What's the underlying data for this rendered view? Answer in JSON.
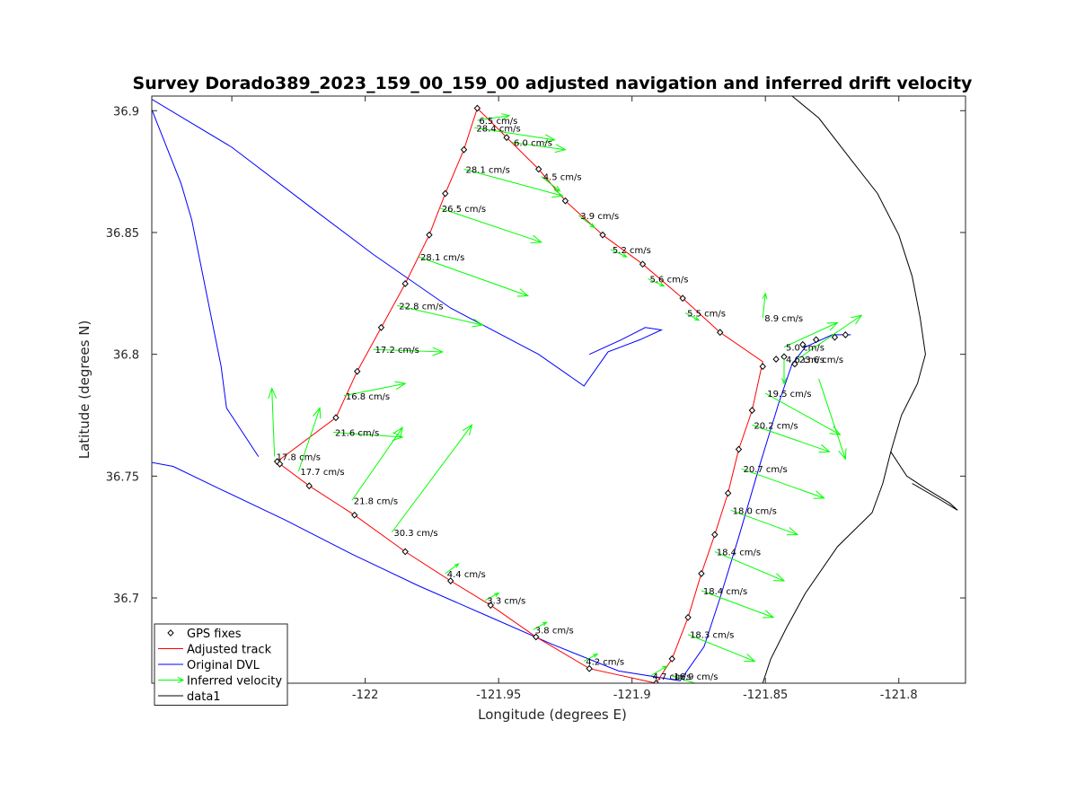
{
  "chart_data": {
    "type": "line",
    "title": "Survey Dorado389_2023_159_00_159_00 adjusted navigation and inferred drift velocity",
    "xlabel": "Longitude (degrees E)",
    "ylabel": "Latitude (degrees N)",
    "xlim": [
      -122.08,
      -121.775
    ],
    "ylim": [
      36.665,
      36.906
    ],
    "xticks": [
      -122.05,
      -122,
      -121.95,
      -121.9,
      -121.85,
      -121.8
    ],
    "xtick_labels": [
      "-122.05",
      "-122",
      "-121.95",
      "-121.9",
      "-121.85",
      "-121.8"
    ],
    "yticks": [
      36.7,
      36.75,
      36.8,
      36.85,
      36.9
    ],
    "ytick_labels": [
      "36.7",
      "36.75",
      "36.8",
      "36.85",
      "36.9"
    ],
    "grid": false,
    "legend_position": "bottom-left",
    "series": [
      {
        "name": "GPS fixes",
        "style": "markers",
        "color": "#000000",
        "points": [
          [
            -121.958,
            36.901
          ],
          [
            -121.947,
            36.889
          ],
          [
            -121.935,
            36.876
          ],
          [
            -121.963,
            36.884
          ],
          [
            -121.97,
            36.866
          ],
          [
            -121.925,
            36.863
          ],
          [
            -121.976,
            36.849
          ],
          [
            -121.911,
            36.849
          ],
          [
            -121.896,
            36.837
          ],
          [
            -121.985,
            36.829
          ],
          [
            -121.881,
            36.823
          ],
          [
            -121.994,
            36.811
          ],
          [
            -121.867,
            36.809
          ],
          [
            -122.003,
            36.793
          ],
          [
            -122.011,
            36.774
          ],
          [
            -122.033,
            36.756
          ],
          [
            -122.032,
            36.755
          ],
          [
            -122.021,
            36.746
          ],
          [
            -122.004,
            36.734
          ],
          [
            -121.985,
            36.719
          ],
          [
            -121.968,
            36.707
          ],
          [
            -121.953,
            36.697
          ],
          [
            -121.936,
            36.684
          ],
          [
            -121.916,
            36.671
          ],
          [
            -121.891,
            36.665
          ],
          [
            -121.851,
            36.795
          ],
          [
            -121.846,
            36.798
          ],
          [
            -121.843,
            36.799
          ],
          [
            -121.836,
            36.804
          ],
          [
            -121.831,
            36.806
          ],
          [
            -121.824,
            36.807
          ],
          [
            -121.82,
            36.808
          ],
          [
            -121.839,
            36.796
          ],
          [
            -121.855,
            36.777
          ],
          [
            -121.86,
            36.761
          ],
          [
            -121.864,
            36.743
          ],
          [
            -121.869,
            36.726
          ],
          [
            -121.874,
            36.71
          ],
          [
            -121.879,
            36.692
          ],
          [
            -121.885,
            36.675
          ]
        ]
      },
      {
        "name": "Adjusted track",
        "style": "line",
        "color": "#ff0000",
        "points": [
          [
            -121.958,
            36.901
          ],
          [
            -121.947,
            36.889
          ],
          [
            -121.935,
            36.876
          ],
          [
            -121.925,
            36.863
          ],
          [
            -121.911,
            36.849
          ],
          [
            -121.896,
            36.837
          ],
          [
            -121.881,
            36.823
          ],
          [
            -121.867,
            36.809
          ],
          [
            -121.851,
            36.797
          ],
          [
            -121.855,
            36.777
          ],
          [
            -121.86,
            36.761
          ],
          [
            -121.864,
            36.743
          ],
          [
            -121.869,
            36.726
          ],
          [
            -121.874,
            36.71
          ],
          [
            -121.879,
            36.692
          ],
          [
            -121.885,
            36.675
          ],
          [
            -121.891,
            36.665
          ],
          [
            -121.916,
            36.671
          ],
          [
            -121.936,
            36.684
          ],
          [
            -121.953,
            36.697
          ],
          [
            -121.968,
            36.707
          ],
          [
            -121.985,
            36.719
          ],
          [
            -122.004,
            36.734
          ],
          [
            -122.021,
            36.746
          ],
          [
            -122.032,
            36.755
          ],
          [
            -122.033,
            36.756
          ],
          [
            -122.011,
            36.774
          ],
          [
            -122.003,
            36.793
          ],
          [
            -121.994,
            36.811
          ],
          [
            -121.985,
            36.829
          ],
          [
            -121.976,
            36.849
          ],
          [
            -121.97,
            36.866
          ],
          [
            -121.963,
            36.884
          ],
          [
            -121.958,
            36.901
          ]
        ]
      },
      {
        "name": "Original DVL",
        "style": "line",
        "color": "#0000ff",
        "points": [
          [
            -122.04,
            36.758
          ],
          [
            -122.052,
            36.778
          ],
          [
            -122.054,
            36.795
          ],
          [
            -122.065,
            36.855
          ],
          [
            -122.069,
            36.87
          ],
          [
            -122.078,
            36.895
          ],
          [
            -122.082,
            36.906
          ],
          [
            -122.05,
            36.885
          ],
          [
            -122.02,
            36.86
          ],
          [
            -121.997,
            36.841
          ],
          [
            -121.968,
            36.819
          ],
          [
            -121.935,
            36.8
          ],
          [
            -121.918,
            36.787
          ],
          [
            -121.909,
            36.801
          ],
          [
            -121.897,
            36.806
          ],
          [
            -121.889,
            36.81
          ],
          [
            -121.895,
            36.811
          ],
          [
            -121.904,
            36.806
          ],
          [
            -121.916,
            36.8
          ]
        ]
      },
      {
        "name": "Original DVL (south leg)",
        "style": "line",
        "color": "#0000ff",
        "points": [
          [
            -122.082,
            36.756
          ],
          [
            -122.072,
            36.754
          ],
          [
            -122.055,
            36.745
          ],
          [
            -122.03,
            36.732
          ],
          [
            -122.005,
            36.718
          ],
          [
            -121.98,
            36.705
          ],
          [
            -121.955,
            36.693
          ],
          [
            -121.93,
            36.681
          ],
          [
            -121.905,
            36.67
          ],
          [
            -121.882,
            36.666
          ],
          [
            -121.873,
            36.68
          ],
          [
            -121.867,
            36.7
          ],
          [
            -121.86,
            36.725
          ],
          [
            -121.852,
            36.755
          ],
          [
            -121.845,
            36.78
          ],
          [
            -121.84,
            36.796
          ],
          [
            -121.835,
            36.803
          ],
          [
            -121.825,
            36.808
          ],
          [
            -121.818,
            36.808
          ]
        ]
      },
      {
        "name": "data1",
        "style": "line",
        "color": "#000000",
        "points": [
          [
            -121.84,
            36.906
          ],
          [
            -121.83,
            36.897
          ],
          [
            -121.818,
            36.88
          ],
          [
            -121.808,
            36.866
          ],
          [
            -121.8,
            36.849
          ],
          [
            -121.795,
            36.832
          ],
          [
            -121.792,
            36.815
          ],
          [
            -121.79,
            36.8
          ],
          [
            -121.793,
            36.788
          ],
          [
            -121.799,
            36.775
          ],
          [
            -121.803,
            36.76
          ],
          [
            -121.806,
            36.747
          ],
          [
            -121.81,
            36.735
          ],
          [
            -121.823,
            36.721
          ],
          [
            -121.835,
            36.702
          ],
          [
            -121.842,
            36.688
          ],
          [
            -121.848,
            36.675
          ],
          [
            -121.851,
            36.665
          ]
        ]
      },
      {
        "name": "data1 (coast spur)",
        "style": "line",
        "color": "#000000",
        "points": [
          [
            -121.803,
            36.76
          ],
          [
            -121.797,
            36.75
          ],
          [
            -121.79,
            36.745
          ],
          [
            -121.781,
            36.739
          ],
          [
            -121.778,
            36.736
          ],
          [
            -121.784,
            36.74
          ],
          [
            -121.795,
            36.747
          ]
        ]
      }
    ],
    "velocity_vectors": {
      "name": "Inferred velocity",
      "color": "#00ff00",
      "vectors": [
        {
          "x": -121.958,
          "y": 36.896,
          "dx": 0.012,
          "dy": 0.002,
          "label": "6.5 cm/s"
        },
        {
          "x": -121.959,
          "y": 36.893,
          "dx": 0.03,
          "dy": -0.005,
          "label": "28.4 cm/s"
        },
        {
          "x": -121.945,
          "y": 36.887,
          "dx": 0.02,
          "dy": -0.003,
          "label": "6.0 cm/s"
        },
        {
          "x": -121.963,
          "y": 36.876,
          "dx": 0.037,
          "dy": -0.011,
          "label": "28.1 cm/s"
        },
        {
          "x": -121.934,
          "y": 36.873,
          "dx": 0.007,
          "dy": -0.006,
          "label": "4.5 cm/s"
        },
        {
          "x": -121.972,
          "y": 36.86,
          "dx": 0.038,
          "dy": -0.014,
          "label": "26.5 cm/s"
        },
        {
          "x": -121.92,
          "y": 36.857,
          "dx": 0.006,
          "dy": -0.005,
          "label": "3.9 cm/s"
        },
        {
          "x": -121.98,
          "y": 36.84,
          "dx": 0.041,
          "dy": -0.016,
          "label": "28.1 cm/s"
        },
        {
          "x": -121.908,
          "y": 36.843,
          "dx": 0.006,
          "dy": -0.003,
          "label": "5.2 cm/s"
        },
        {
          "x": -121.894,
          "y": 36.831,
          "dx": 0.006,
          "dy": -0.003,
          "label": "5.6 cm/s"
        },
        {
          "x": -121.988,
          "y": 36.82,
          "dx": 0.032,
          "dy": -0.008,
          "label": "22.8 cm/s"
        },
        {
          "x": -121.88,
          "y": 36.817,
          "dx": 0.005,
          "dy": -0.003,
          "label": "5.5 cm/s"
        },
        {
          "x": -121.997,
          "y": 36.802,
          "dx": 0.026,
          "dy": -0.001,
          "label": "17.2 cm/s"
        },
        {
          "x": -121.851,
          "y": 36.815,
          "dx": 0.001,
          "dy": 0.01,
          "label": "8.9 cm/s"
        },
        {
          "x": -122.008,
          "y": 36.783,
          "dx": 0.023,
          "dy": 0.005,
          "label": "16.8 cm/s"
        },
        {
          "x": -122.034,
          "y": 36.758,
          "dx": -0.001,
          "dy": 0.028,
          "label": "17.8 cm/s"
        },
        {
          "x": -122.012,
          "y": 36.768,
          "dx": 0.026,
          "dy": -0.002,
          "label": "21.6 cm/s"
        },
        {
          "x": -122.025,
          "y": 36.752,
          "dx": 0.008,
          "dy": 0.026,
          "label": "17.7 cm/s"
        },
        {
          "x": -122.005,
          "y": 36.74,
          "dx": 0.019,
          "dy": 0.03,
          "label": "21.8 cm/s"
        },
        {
          "x": -121.99,
          "y": 36.727,
          "dx": 0.03,
          "dy": 0.044,
          "label": "30.3 cm/s"
        },
        {
          "x": -121.97,
          "y": 36.71,
          "dx": 0.005,
          "dy": 0.004,
          "label": "4.4 cm/s"
        },
        {
          "x": -121.955,
          "y": 36.699,
          "dx": 0.005,
          "dy": 0.003,
          "label": "3.3 cm/s"
        },
        {
          "x": -121.937,
          "y": 36.687,
          "dx": 0.005,
          "dy": 0.003,
          "label": "3.8 cm/s"
        },
        {
          "x": -121.918,
          "y": 36.674,
          "dx": 0.005,
          "dy": 0.003,
          "label": "4.2 cm/s"
        },
        {
          "x": -121.893,
          "y": 36.668,
          "dx": 0.006,
          "dy": 0.004,
          "label": "4.7 cm/s"
        },
        {
          "x": -121.843,
          "y": 36.803,
          "dx": 0.02,
          "dy": 0.01,
          "label": "5.0 cm/s"
        },
        {
          "x": -121.838,
          "y": 36.798,
          "dx": 0.024,
          "dy": 0.018,
          "label": "23.6 cm/s"
        },
        {
          "x": -121.843,
          "y": 36.798,
          "dx": 0.0,
          "dy": -0.01,
          "label": "4.6 cm/s"
        },
        {
          "x": -121.85,
          "y": 36.784,
          "dx": 0.028,
          "dy": -0.017,
          "label": "19.5 cm/s"
        },
        {
          "x": -121.855,
          "y": 36.771,
          "dx": 0.029,
          "dy": -0.011,
          "label": "20.2 cm/s"
        },
        {
          "x": -121.859,
          "y": 36.753,
          "dx": 0.031,
          "dy": -0.012,
          "label": "20.7 cm/s"
        },
        {
          "x": -121.863,
          "y": 36.736,
          "dx": 0.025,
          "dy": -0.01,
          "label": "18.0 cm/s"
        },
        {
          "x": -121.869,
          "y": 36.719,
          "dx": 0.026,
          "dy": -0.012,
          "label": "18.4 cm/s"
        },
        {
          "x": -121.874,
          "y": 36.703,
          "dx": 0.027,
          "dy": -0.011,
          "label": "18.4 cm/s"
        },
        {
          "x": -121.879,
          "y": 36.685,
          "dx": 0.025,
          "dy": -0.011,
          "label": "18.3 cm/s"
        },
        {
          "x": -121.885,
          "y": 36.668,
          "dx": 0.023,
          "dy": -0.008,
          "label": "16.9 cm/s"
        },
        {
          "x": -121.83,
          "y": 36.79,
          "dx": 0.01,
          "dy": -0.033,
          "label": ""
        }
      ]
    },
    "legend": {
      "entries": [
        {
          "label": "GPS fixes",
          "kind": "marker",
          "color": "#000000"
        },
        {
          "label": "Adjusted track",
          "kind": "line",
          "color": "#ff0000"
        },
        {
          "label": "Original DVL",
          "kind": "line",
          "color": "#0000ff"
        },
        {
          "label": "Inferred velocity",
          "kind": "arrow",
          "color": "#00ff00"
        },
        {
          "label": "data1",
          "kind": "line",
          "color": "#000000"
        }
      ]
    }
  }
}
